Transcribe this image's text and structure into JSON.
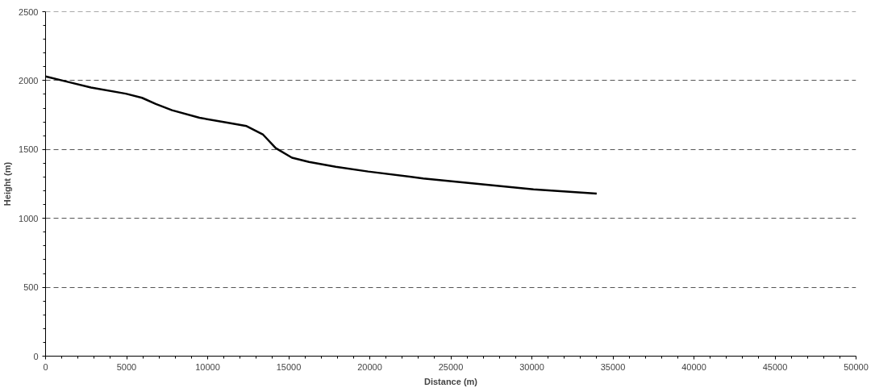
{
  "chart_data": {
    "type": "line",
    "xlabel": "Distance (m)",
    "ylabel": "Height (m)",
    "x": [
      0,
      1400,
      2800,
      4950,
      5950,
      6800,
      7800,
      9500,
      11200,
      12400,
      13400,
      14200,
      15200,
      16250,
      17900,
      19900,
      23300,
      26700,
      30100,
      34000
    ],
    "series": [
      {
        "color": "#000000",
        "values": [
          2030,
          1990,
          1950,
          1905,
          1875,
          1830,
          1785,
          1730,
          1695,
          1670,
          1610,
          1510,
          1440,
          1410,
          1375,
          1340,
          1290,
          1250,
          1210,
          1180
        ]
      }
    ],
    "xlim": [
      0,
      50000
    ],
    "xticks": [
      0,
      5000,
      10000,
      15000,
      20000,
      25000,
      30000,
      35000,
      40000,
      45000,
      50000
    ],
    "ylim": [
      0,
      2500
    ],
    "yticks": [
      0,
      500,
      1000,
      1500,
      2000,
      2500
    ],
    "grid": "y",
    "line_style": "solid",
    "marker": "none"
  }
}
